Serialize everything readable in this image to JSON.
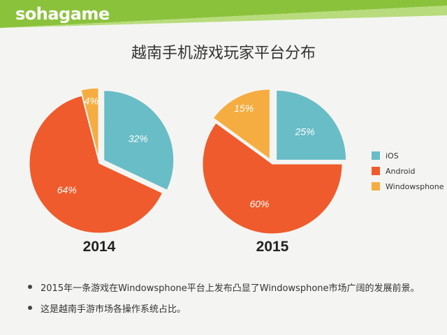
{
  "logo": {
    "text": "sohagame"
  },
  "colors": {
    "header_green": "#8bc23c",
    "header_light": "#b8dc7d",
    "ios": "#69bdc6",
    "android": "#ef5b2c",
    "windowsphone": "#f5ad42"
  },
  "chart_data": {
    "type": "pie",
    "title": "越南手机游戏玩家平台分布",
    "legend_position": "right",
    "categories": [
      "iOS",
      "Android",
      "Windowsphone"
    ],
    "series": [
      {
        "name": "2014",
        "values": [
          32,
          64,
          4
        ],
        "labels": [
          "32%",
          "64%",
          "4%"
        ]
      },
      {
        "name": "2015",
        "values": [
          25,
          60,
          15
        ],
        "labels": [
          "25%",
          "60%",
          "15%"
        ]
      }
    ]
  },
  "bullets": [
    "2015年一条游戏在Windowsphone平台上发布凸显了Windowsphone市场广阔的发展前景。",
    "这是越南手游市场各操作系统占比。"
  ]
}
